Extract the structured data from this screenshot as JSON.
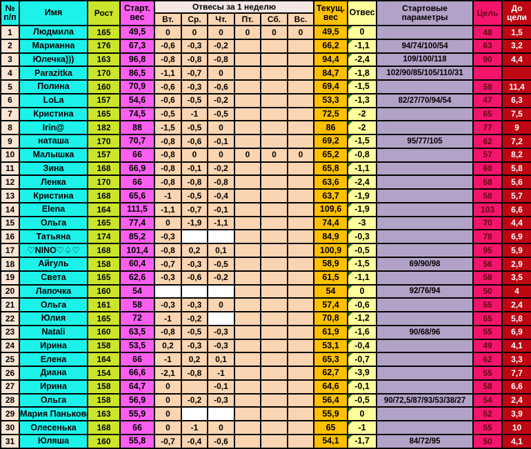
{
  "colors": {
    "cyan": "#1df2ea",
    "num-col": "#fbe5d5",
    "peach": "#fbd5b1",
    "group-hdr": "#f4e6e2",
    "green": "#cce42c",
    "magenta": "#fa5ff0",
    "gold": "#ffc000",
    "paleyellow": "#ffff9c",
    "lavender": "#b2a2c7",
    "pink": "#f3156c",
    "darkred": "#be0712",
    "goal-text": "#670512",
    "triangle": "#1f7a1f"
  },
  "table": {
    "header": {
      "num": [
        "№",
        "п/п"
      ],
      "name": "Имя",
      "height": "Рост",
      "start_weight": [
        "Старт.",
        "вес"
      ],
      "week_group": "Отвесы за 1 неделю",
      "days": [
        "Вт.",
        "Ср.",
        "Чт.",
        "Пт.",
        "Сб.",
        "Вс."
      ],
      "current_weight": [
        "Текущ.",
        "вес"
      ],
      "loss": "Отвес",
      "start_params": [
        "Стартовые",
        "параметры"
      ],
      "goal": "Цель",
      "to_goal": [
        "До",
        "цели"
      ]
    },
    "rows": [
      {
        "num": "1",
        "name": "Людмила",
        "height": "165",
        "start": "49,5",
        "days": [
          "0",
          "0",
          "0",
          "0",
          "0",
          "0"
        ],
        "current": "49,5",
        "loss": "0",
        "params": "",
        "goal": "48",
        "to_goal": "1,5"
      },
      {
        "num": "2",
        "name": "Марианна",
        "height": "176",
        "start": "67,3",
        "days": [
          "-0,6",
          "-0,3",
          "-0,2",
          "",
          "",
          ""
        ],
        "current": "66,2",
        "loss": "-1,1",
        "params": "94/74/100/54",
        "goal": "63",
        "to_goal": "3,2"
      },
      {
        "num": "3",
        "name": "Юлечка)))",
        "height": "163",
        "start": "96,8",
        "days": [
          "-0,8",
          "-0,8",
          "-0,8",
          "",
          "",
          ""
        ],
        "current": "94,4",
        "loss": "-2,4",
        "params": "109/100/118",
        "goal": "90",
        "to_goal": "4,4"
      },
      {
        "num": "4",
        "name": "Parazitka",
        "height": "170",
        "start": "86,5",
        "days": [
          "-1,1",
          "-0,7",
          "0",
          "",
          "",
          ""
        ],
        "current": "84,7",
        "loss": "-1,8",
        "params": "102/90/85/105/110/31",
        "goal": "",
        "to_goal": ""
      },
      {
        "num": "5",
        "name": "Полина",
        "height": "160",
        "start": "70,9",
        "days": [
          "-0,6",
          "-0,3",
          "-0,6",
          "",
          "",
          ""
        ],
        "current": "69,4",
        "loss": "-1,5",
        "params": "",
        "goal": "58",
        "to_goal": "11,4"
      },
      {
        "num": "6",
        "name": "LoLa",
        "height": "157",
        "start": "54,6",
        "days": [
          "-0,6",
          "-0,5",
          "-0,2",
          "",
          "",
          ""
        ],
        "current": "53,3",
        "loss": "-1,3",
        "params": "82/27/70/94/54",
        "goal": "47",
        "to_goal": "6,3"
      },
      {
        "num": "7",
        "name": "Кристина",
        "height": "165",
        "start": "74,5",
        "days": [
          "-0,5",
          "-1",
          "-0,5",
          "",
          "",
          ""
        ],
        "current": "72,5",
        "loss": "-2",
        "params": "",
        "goal": "65",
        "to_goal": "7,5"
      },
      {
        "num": "8",
        "name": "Irin@",
        "height": "182",
        "start": "88",
        "days": [
          "-1,5",
          "-0,5",
          "0",
          "",
          "",
          ""
        ],
        "current": "86",
        "loss": "-2",
        "params": "",
        "goal": "77",
        "to_goal": "9"
      },
      {
        "num": "9",
        "name": "наташа",
        "height": "170",
        "start": "70,7",
        "days": [
          "-0,8",
          "-0,6",
          "-0,1",
          "",
          "",
          ""
        ],
        "current": "69,2",
        "loss": "-1,5",
        "params": "95/77/105",
        "goal": "62",
        "to_goal": "7,2"
      },
      {
        "num": "10",
        "name": "Малышка",
        "height": "157",
        "start": "66",
        "days": [
          "-0,8",
          "0",
          "0",
          "0",
          "0",
          "0"
        ],
        "current": "65,2",
        "loss": "-0,8",
        "params": "",
        "goal": "57",
        "to_goal": "8,2"
      },
      {
        "num": "11",
        "name": "Зина",
        "height": "168",
        "start": "66,9",
        "days": [
          "-0,8",
          "-0,1",
          "-0,2",
          "",
          "",
          ""
        ],
        "current": "65,8",
        "loss": "-1,1",
        "params": "",
        "goal": "60",
        "to_goal": "5,8"
      },
      {
        "num": "12",
        "name": "Ленка",
        "height": "170",
        "start": "66",
        "days": [
          "-0,8",
          "-0,8",
          "-0,8",
          "",
          "",
          ""
        ],
        "current": "63,6",
        "loss": "-2,4",
        "params": "",
        "goal": "58",
        "to_goal": "5,6"
      },
      {
        "num": "13",
        "name": "Кристина",
        "height": "168",
        "start": "65,6",
        "days": [
          "-1",
          "-0,5",
          "-0,4",
          "",
          "",
          ""
        ],
        "current": "63,7",
        "loss": "-1,9",
        "params": "",
        "goal": "58",
        "to_goal": "5,7"
      },
      {
        "num": "14",
        "name": "Elena",
        "height": "164",
        "start": "111,5",
        "days": [
          "-1,1",
          "-0,7",
          "-0,1",
          "",
          "",
          ""
        ],
        "current": "109,6",
        "loss": "-1,9",
        "params": "",
        "goal": "103",
        "to_goal": "6,6"
      },
      {
        "num": "15",
        "name": "Ольга",
        "height": "165",
        "start": "77,4",
        "days": [
          "0",
          "-1,9",
          "-1,1",
          "",
          "",
          ""
        ],
        "current": "74,4",
        "loss": "-3",
        "params": "",
        "goal": "70",
        "to_goal": "4,4"
      },
      {
        "num": "16",
        "name": "Татьяна",
        "height": "174",
        "start": "85,2",
        "days": [
          "-0,3",
          null,
          null,
          "",
          "",
          ""
        ],
        "current": "84,9",
        "loss": "-0,3",
        "params": "",
        "goal": "78",
        "to_goal": "6,9"
      },
      {
        "num": "17",
        "name": "♡NINO♡♤♡",
        "height": "168",
        "start": "101,4",
        "days": [
          "-0,8",
          "0,2",
          "0,1",
          "",
          "",
          ""
        ],
        "current": "100,9",
        "loss": "-0,5",
        "params": "",
        "goal": "95",
        "to_goal": "5,9"
      },
      {
        "num": "18",
        "name": "Айгуль",
        "height": "158",
        "start": "60,4",
        "days": [
          "-0,7",
          "-0,3",
          "-0,5",
          "",
          "",
          ""
        ],
        "current": "58,9",
        "loss": "-1,5",
        "params": "69/90/98",
        "goal": "56",
        "to_goal": "2,9"
      },
      {
        "num": "19",
        "name": "Света",
        "height": "165",
        "start": "62,6",
        "days": [
          "-0,3",
          "-0,6",
          "-0,2",
          "",
          "",
          ""
        ],
        "current": "61,5",
        "loss": "-1,1",
        "params": "",
        "goal": "58",
        "to_goal": "3,5"
      },
      {
        "num": "20",
        "name": "Лапочка",
        "height": "160",
        "start": "54",
        "days": [
          null,
          null,
          null,
          "",
          "",
          ""
        ],
        "current": "54",
        "loss": "0",
        "params": "92/76/94",
        "goal": "50",
        "to_goal": "4"
      },
      {
        "num": "21",
        "name": "Ольга",
        "height": "161",
        "start": "58",
        "days": [
          "-0,3",
          "-0,3",
          "0",
          "",
          "",
          ""
        ],
        "current": "57,4",
        "loss": "-0,6",
        "params": "",
        "goal": "55",
        "to_goal": "2,4"
      },
      {
        "num": "22",
        "name": "Юлия",
        "height": "165",
        "start": "72",
        "days": [
          "-1",
          "-0,2",
          null,
          "",
          "",
          ""
        ],
        "current": "70,8",
        "loss": "-1,2",
        "params": "",
        "goal": "65",
        "to_goal": "5,8"
      },
      {
        "num": "23",
        "name": "Natali",
        "height": "160",
        "start": "63,5",
        "days": [
          "-0,8",
          "-0,5",
          "-0,3",
          "",
          "",
          ""
        ],
        "current": "61,9",
        "loss": "-1,6",
        "params": "90/68/96",
        "goal": "55",
        "to_goal": "6,9"
      },
      {
        "num": "24",
        "name": "Ирина",
        "height": "158",
        "start": "53,5",
        "days": [
          "0,2",
          "-0,3",
          "-0,3",
          "",
          "",
          ""
        ],
        "current": "53,1",
        "loss": "-0,4",
        "params": "",
        "goal": "49",
        "to_goal": "4,1"
      },
      {
        "num": "25",
        "name": "Елена",
        "height": "164",
        "start": "66",
        "days": [
          "-1",
          "0,2",
          "0,1",
          "",
          "",
          ""
        ],
        "current": "65,3",
        "loss": "-0,7",
        "params": "",
        "goal": "62",
        "to_goal": "3,3"
      },
      {
        "num": "26",
        "name": "Диана",
        "height": "154",
        "start": "66,6",
        "days": [
          "-2,1",
          "-0,8",
          "-1",
          "",
          "",
          ""
        ],
        "current": "62,7",
        "loss": "-3,9",
        "params": "",
        "goal": "55",
        "to_goal": "7,7"
      },
      {
        "num": "27",
        "name": "Ирина",
        "height": "158",
        "start": "64,7",
        "days": [
          "0",
          "",
          "-0,1",
          "",
          "",
          ""
        ],
        "current": "64,6",
        "loss": "-0,1",
        "params": "",
        "goal": "58",
        "to_goal": "6,6"
      },
      {
        "num": "28",
        "name": "Ольга",
        "height": "158",
        "start": "56,9",
        "days": [
          "0",
          "-0,2",
          "-0,3",
          "",
          "",
          ""
        ],
        "current": "56,4",
        "loss": "-0,5",
        "params": "90/72,5/87/93/53/38/27",
        "goal": "54",
        "to_goal": "2,4"
      },
      {
        "num": "29",
        "name": "Мария Панькова",
        "height": "163",
        "start": "55,9",
        "days": [
          "0",
          null,
          null,
          "",
          "",
          ""
        ],
        "current": "55,9",
        "loss": "0",
        "params": "",
        "goal": "52",
        "to_goal": "3,9"
      },
      {
        "num": "30",
        "name": "Олесенька",
        "height": "168",
        "start": "66",
        "days": [
          "0",
          "-1",
          "0",
          "",
          "",
          ""
        ],
        "current": "65",
        "loss": "-1",
        "params": "",
        "goal": "55",
        "to_goal": "10"
      },
      {
        "num": "31",
        "name": "Юляша",
        "height": "160",
        "start": "55,8",
        "days": [
          "-0,7",
          "-0,4",
          "-0,6",
          "",
          "",
          ""
        ],
        "current": "54,1",
        "loss": "-1,7",
        "params": "84/72/95",
        "goal": "50",
        "to_goal": "4,1"
      }
    ]
  }
}
